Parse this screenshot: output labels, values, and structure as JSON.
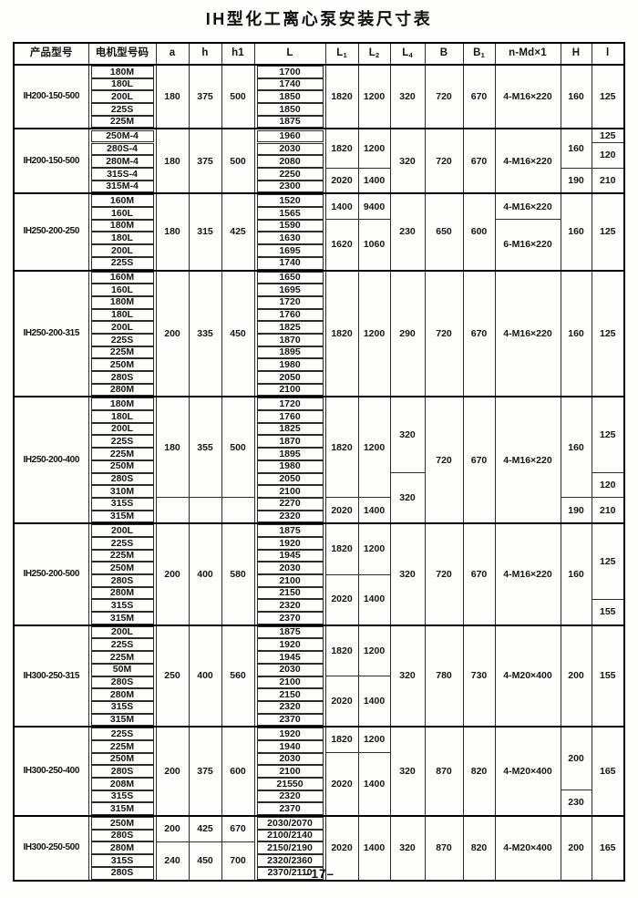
{
  "title": "IH型化工离心泵安装尺寸表",
  "footer": {
    "page_number": "–17–"
  },
  "table": {
    "columns": [
      {
        "key": "product",
        "main": "产品型号",
        "sub": ""
      },
      {
        "key": "motor",
        "main": "电机型号码",
        "sub": ""
      },
      {
        "key": "a",
        "main": "a",
        "sub": ""
      },
      {
        "key": "h",
        "main": "h",
        "sub": ""
      },
      {
        "key": "h1",
        "main": "h1",
        "sub": ""
      },
      {
        "key": "L",
        "main": "L",
        "sub": ""
      },
      {
        "key": "L1",
        "main": "L",
        "sub": "1"
      },
      {
        "key": "L2",
        "main": "L",
        "sub": "2"
      },
      {
        "key": "L4",
        "main": "L",
        "sub": "4"
      },
      {
        "key": "B",
        "main": "B",
        "sub": ""
      },
      {
        "key": "B1",
        "main": "B",
        "sub": "1"
      },
      {
        "key": "nMd",
        "main": "n-Md×1",
        "sub": ""
      },
      {
        "key": "H",
        "main": "H",
        "sub": ""
      },
      {
        "key": "I",
        "main": "l",
        "sub": ""
      }
    ],
    "blocks": [
      {
        "product": "IH200-150-500",
        "rows": [
          [
            "180M",
            "1700"
          ],
          [
            "180L",
            "1740"
          ],
          [
            "200L",
            "1850"
          ],
          [
            "225S",
            "1850"
          ],
          [
            "225M",
            "1875"
          ]
        ],
        "cells": {
          "a": [
            [
              "180",
              5
            ]
          ],
          "h": [
            [
              "375",
              5
            ]
          ],
          "h1": [
            [
              "500",
              5
            ]
          ],
          "L1": [
            [
              "1820",
              5
            ]
          ],
          "L2": [
            [
              "1200",
              5
            ]
          ],
          "L4": [
            [
              "320",
              5
            ]
          ],
          "B": [
            [
              "720",
              5
            ]
          ],
          "B1": [
            [
              "670",
              5
            ]
          ],
          "nMd": [
            [
              "4-M16×220",
              5
            ]
          ],
          "H": [
            [
              "160",
              5
            ]
          ],
          "I": [
            [
              "125",
              5
            ]
          ]
        }
      },
      {
        "product": "IH200-150-500",
        "rows": [
          [
            "250M-4",
            "1960"
          ],
          [
            "280S-4",
            "2030"
          ],
          [
            "280M-4",
            "2080"
          ],
          [
            "315S-4",
            "2250"
          ],
          [
            "315M-4",
            "2300"
          ]
        ],
        "cells": {
          "a": [
            [
              "180",
              5
            ]
          ],
          "h": [
            [
              "375",
              5
            ]
          ],
          "h1": [
            [
              "500",
              5
            ]
          ],
          "L1": [
            [
              "1820",
              3
            ],
            [
              "2020",
              2
            ]
          ],
          "L2": [
            [
              "1200",
              3
            ],
            [
              "1400",
              2
            ]
          ],
          "L4": [
            [
              "320",
              5
            ]
          ],
          "B": [
            [
              "720",
              5
            ]
          ],
          "B1": [
            [
              "670",
              5
            ]
          ],
          "nMd": [
            [
              "4-M16×220",
              5
            ]
          ],
          "H": [
            [
              "160",
              3
            ],
            [
              "190",
              2
            ]
          ],
          "I": [
            [
              "125",
              1
            ],
            [
              "120",
              2
            ],
            [
              "210",
              2
            ]
          ]
        }
      },
      {
        "product": "IH250-200-250",
        "rows": [
          [
            "160M",
            "1520"
          ],
          [
            "160L",
            "1565"
          ],
          [
            "180M",
            "1590"
          ],
          [
            "180L",
            "1630"
          ],
          [
            "200L",
            "1695"
          ],
          [
            "225S",
            "1740"
          ]
        ],
        "cells": {
          "a": [
            [
              "180",
              6
            ]
          ],
          "h": [
            [
              "315",
              6
            ]
          ],
          "h1": [
            [
              "425",
              6
            ]
          ],
          "L1": [
            [
              "1400",
              2
            ],
            [
              "1620",
              4
            ]
          ],
          "L2": [
            [
              "9400",
              2
            ],
            [
              "1060",
              4
            ]
          ],
          "L4": [
            [
              "230",
              6
            ]
          ],
          "B": [
            [
              "650",
              6
            ]
          ],
          "B1": [
            [
              "600",
              6
            ]
          ],
          "nMd": [
            [
              "4-M16×220",
              2
            ],
            [
              "6-M16×220",
              4
            ]
          ],
          "H": [
            [
              "160",
              6
            ]
          ],
          "I": [
            [
              "125",
              6
            ]
          ]
        }
      },
      {
        "product": "IH250-200-315",
        "rows": [
          [
            "160M",
            "1650"
          ],
          [
            "160L",
            "1695"
          ],
          [
            "180M",
            "1720"
          ],
          [
            "180L",
            "1760"
          ],
          [
            "200L",
            "1825"
          ],
          [
            "225S",
            "1870"
          ],
          [
            "225M",
            "1895"
          ],
          [
            "250M",
            "1980"
          ],
          [
            "280S",
            "2050"
          ],
          [
            "280M",
            "2100"
          ]
        ],
        "cells": {
          "a": [
            [
              "200",
              10
            ]
          ],
          "h": [
            [
              "335",
              10
            ]
          ],
          "h1": [
            [
              "450",
              10
            ]
          ],
          "L1": [
            [
              "1820",
              10
            ]
          ],
          "L2": [
            [
              "1200",
              10
            ]
          ],
          "L4": [
            [
              "290",
              10
            ]
          ],
          "B": [
            [
              "720",
              10
            ]
          ],
          "B1": [
            [
              "670",
              10
            ]
          ],
          "nMd": [
            [
              "4-M16×220",
              10
            ]
          ],
          "H": [
            [
              "160",
              10
            ]
          ],
          "I": [
            [
              "125",
              10
            ]
          ]
        }
      },
      {
        "product": "IH250-200-400",
        "rows": [
          [
            "180M",
            "1720"
          ],
          [
            "180L",
            "1760"
          ],
          [
            "200L",
            "1825"
          ],
          [
            "225S",
            "1870"
          ],
          [
            "225M",
            "1895"
          ],
          [
            "250M",
            "1980"
          ],
          [
            "280S",
            "2050"
          ],
          [
            "310M",
            "2100"
          ],
          [
            "315S",
            "2270"
          ],
          [
            "315M",
            "2320"
          ]
        ],
        "cells": {
          "a": [
            [
              "180",
              8
            ],
            [
              "",
              2
            ]
          ],
          "h": [
            [
              "355",
              8
            ],
            [
              "",
              2
            ]
          ],
          "h1": [
            [
              "500",
              8
            ],
            [
              "",
              2
            ]
          ],
          "L1": [
            [
              "1820",
              8
            ],
            [
              "2020",
              2
            ]
          ],
          "L2": [
            [
              "1200",
              8
            ],
            [
              "1400",
              2
            ]
          ],
          "L4": [
            [
              "320",
              6
            ],
            [
              "320",
              4
            ]
          ],
          "B": [
            [
              "720",
              10
            ]
          ],
          "B1": [
            [
              "670",
              10
            ]
          ],
          "nMd": [
            [
              "4-M16×220",
              10
            ]
          ],
          "H": [
            [
              "160",
              8
            ],
            [
              "190",
              2
            ]
          ],
          "I": [
            [
              "125",
              6
            ],
            [
              "120",
              2
            ],
            [
              "210",
              2
            ]
          ]
        }
      },
      {
        "product": "IH250-200-500",
        "rows": [
          [
            "200L",
            "1875"
          ],
          [
            "225S",
            "1920"
          ],
          [
            "225M",
            "1945"
          ],
          [
            "250M",
            "2030"
          ],
          [
            "280S",
            "2100"
          ],
          [
            "280M",
            "2150"
          ],
          [
            "315S",
            "2320"
          ],
          [
            "315M",
            "2370"
          ]
        ],
        "cells": {
          "a": [
            [
              "200",
              8
            ]
          ],
          "h": [
            [
              "400",
              8
            ]
          ],
          "h1": [
            [
              "580",
              8
            ]
          ],
          "L1": [
            [
              "1820",
              4
            ],
            [
              "2020",
              4
            ]
          ],
          "L2": [
            [
              "1200",
              4
            ],
            [
              "1400",
              4
            ]
          ],
          "L4": [
            [
              "320",
              8
            ]
          ],
          "B": [
            [
              "720",
              8
            ]
          ],
          "B1": [
            [
              "670",
              8
            ]
          ],
          "nMd": [
            [
              "4-M16×220",
              8
            ]
          ],
          "H": [
            [
              "160",
              8
            ]
          ],
          "I": [
            [
              "125",
              6
            ],
            [
              "155",
              2
            ]
          ]
        }
      },
      {
        "product": "IH300-250-315",
        "rows": [
          [
            "200L",
            "1875"
          ],
          [
            "225S",
            "1920"
          ],
          [
            "225M",
            "1945"
          ],
          [
            "50M",
            "2030"
          ],
          [
            "280S",
            "2100"
          ],
          [
            "280M",
            "2150"
          ],
          [
            "315S",
            "2320"
          ],
          [
            "315M",
            "2370"
          ]
        ],
        "cells": {
          "a": [
            [
              "250",
              8
            ]
          ],
          "h": [
            [
              "400",
              8
            ]
          ],
          "h1": [
            [
              "560",
              8
            ]
          ],
          "L1": [
            [
              "1820",
              4
            ],
            [
              "2020",
              4
            ]
          ],
          "L2": [
            [
              "1200",
              4
            ],
            [
              "1400",
              4
            ]
          ],
          "L4": [
            [
              "320",
              8
            ]
          ],
          "B": [
            [
              "780",
              8
            ]
          ],
          "B1": [
            [
              "730",
              8
            ]
          ],
          "nMd": [
            [
              "4-M20×400",
              8
            ]
          ],
          "H": [
            [
              "200",
              8
            ]
          ],
          "I": [
            [
              "155",
              8
            ]
          ]
        }
      },
      {
        "product": "IH300-250-400",
        "rows": [
          [
            "225S",
            "1920"
          ],
          [
            "225M",
            "1940"
          ],
          [
            "250M",
            "2030"
          ],
          [
            "280S",
            "2100"
          ],
          [
            "208M",
            "21550"
          ],
          [
            "315S",
            "2320"
          ],
          [
            "315M",
            "2370"
          ]
        ],
        "cells": {
          "a": [
            [
              "200",
              7
            ]
          ],
          "h": [
            [
              "375",
              7
            ]
          ],
          "h1": [
            [
              "600",
              7
            ]
          ],
          "L1": [
            [
              "1820",
              2
            ],
            [
              "2020",
              5
            ]
          ],
          "L2": [
            [
              "1200",
              2
            ],
            [
              "1400",
              5
            ]
          ],
          "L4": [
            [
              "320",
              7
            ]
          ],
          "B": [
            [
              "870",
              7
            ]
          ],
          "B1": [
            [
              "820",
              7
            ]
          ],
          "nMd": [
            [
              "4-M20×400",
              7
            ]
          ],
          "H": [
            [
              "200",
              5
            ],
            [
              "230",
              2
            ]
          ],
          "I": [
            [
              "165",
              7
            ]
          ]
        }
      },
      {
        "product": "IH300-250-500",
        "rows": [
          [
            "250M",
            "2030/2070"
          ],
          [
            "280S",
            "2100/2140"
          ],
          [
            "280M",
            "2150/2190"
          ],
          [
            "315S",
            "2320/2360"
          ],
          [
            "280S",
            "2370/2110"
          ]
        ],
        "cells": {
          "a": [
            [
              "200",
              2
            ],
            [
              "240",
              3
            ]
          ],
          "h": [
            [
              "425",
              2
            ],
            [
              "450",
              3
            ]
          ],
          "h1": [
            [
              "670",
              2
            ],
            [
              "700",
              3
            ]
          ],
          "L1": [
            [
              "2020",
              5
            ]
          ],
          "L2": [
            [
              "1400",
              5
            ]
          ],
          "L4": [
            [
              "320",
              5
            ]
          ],
          "B": [
            [
              "870",
              5
            ]
          ],
          "B1": [
            [
              "820",
              5
            ]
          ],
          "nMd": [
            [
              "4-M20×400",
              5
            ]
          ],
          "H": [
            [
              "200",
              5
            ]
          ],
          "I": [
            [
              "165",
              5
            ]
          ]
        }
      }
    ]
  }
}
